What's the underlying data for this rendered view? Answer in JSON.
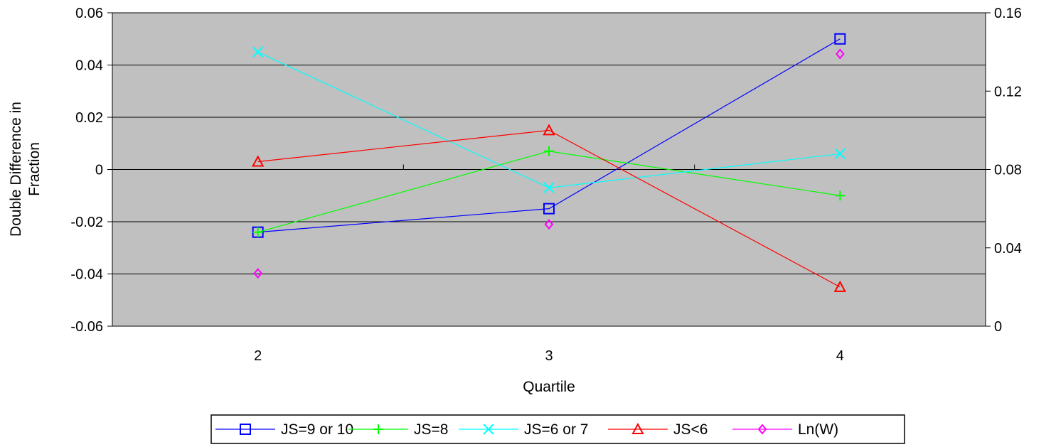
{
  "chart_data": {
    "type": "line",
    "title": "",
    "xlabel": "Quartile",
    "ylabel": "Double Difference in Fraction",
    "ylabel_lines": [
      "Double Difference in",
      "Fraction"
    ],
    "categories": [
      "2",
      "3",
      "4"
    ],
    "ylim": [
      -0.06,
      0.06
    ],
    "yticks": [
      -0.06,
      -0.04,
      -0.02,
      0,
      0.02,
      0.04,
      0.06
    ],
    "ytick_labels": [
      "-0.06",
      "-0.04",
      "-0.02",
      "0",
      "0.02",
      "0.04",
      "0.06"
    ],
    "y2lim": [
      0,
      0.16
    ],
    "y2ticks": [
      0,
      0.04,
      0.08,
      0.12,
      0.16
    ],
    "y2tick_labels": [
      "0",
      "0.04",
      "0.08",
      "0.12",
      "0.16"
    ],
    "grid": true,
    "plot_background": "#c0c0c0",
    "legend_position": "bottom",
    "series": [
      {
        "name": "JS=9 or 10",
        "axis": "left",
        "color": "#0000ff",
        "marker": "square",
        "line": true,
        "values": [
          -0.024,
          -0.015,
          0.05
        ]
      },
      {
        "name": "JS=8",
        "axis": "left",
        "color": "#00ff00",
        "marker": "plus",
        "line": true,
        "values": [
          -0.024,
          0.007,
          -0.01
        ]
      },
      {
        "name": "JS=6 or 7",
        "axis": "left",
        "color": "#00ffff",
        "marker": "x",
        "line": true,
        "values": [
          0.045,
          -0.007,
          0.006
        ]
      },
      {
        "name": "JS<6",
        "axis": "left",
        "color": "#ff0000",
        "marker": "triangle",
        "line": true,
        "values": [
          0.003,
          0.015,
          -0.045
        ]
      },
      {
        "name": "Ln(W)",
        "axis": "right",
        "color": "#ff00ff",
        "marker": "diamond",
        "line": false,
        "values": [
          0.027,
          0.052,
          0.139
        ]
      }
    ]
  }
}
